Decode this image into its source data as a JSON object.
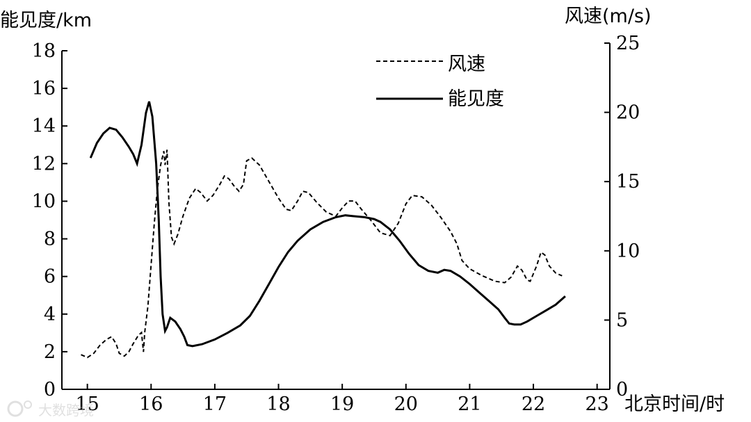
{
  "chart_data": {
    "type": "line",
    "xlabel": "北京时间/时",
    "ylabel_left": "能见度/km",
    "ylabel_right": "风速(m/s)",
    "xlim": [
      14.6,
      23.2
    ],
    "ylim_left": [
      0,
      18
    ],
    "ylim_right": [
      0,
      25
    ],
    "x_ticks": [
      15,
      16,
      17,
      18,
      19,
      20,
      21,
      22,
      23
    ],
    "y_ticks_left": [
      0,
      2,
      4,
      6,
      8,
      10,
      12,
      14,
      16,
      18
    ],
    "y_ticks_right": [
      0,
      5,
      10,
      15,
      20,
      25
    ],
    "grid": false,
    "legend_position": "top-center",
    "series": [
      {
        "name": "风速",
        "axis": "right",
        "style": "dashed",
        "points": [
          [
            14.9,
            2.5
          ],
          [
            15.0,
            2.3
          ],
          [
            15.1,
            2.6
          ],
          [
            15.2,
            3.2
          ],
          [
            15.3,
            3.6
          ],
          [
            15.38,
            3.8
          ],
          [
            15.45,
            3.3
          ],
          [
            15.5,
            2.6
          ],
          [
            15.58,
            2.4
          ],
          [
            15.65,
            2.7
          ],
          [
            15.72,
            3.3
          ],
          [
            15.8,
            3.9
          ],
          [
            15.85,
            4.1
          ],
          [
            15.88,
            2.7
          ],
          [
            15.9,
            4.1
          ],
          [
            15.95,
            6.0
          ],
          [
            16.0,
            9.0
          ],
          [
            16.05,
            12.0
          ],
          [
            16.1,
            14.5
          ],
          [
            16.15,
            16.2
          ],
          [
            16.2,
            17.2
          ],
          [
            16.22,
            16.2
          ],
          [
            16.25,
            17.3
          ],
          [
            16.28,
            13.5
          ],
          [
            16.32,
            11.0
          ],
          [
            16.36,
            10.5
          ],
          [
            16.42,
            11.2
          ],
          [
            16.5,
            12.5
          ],
          [
            16.6,
            13.8
          ],
          [
            16.7,
            14.5
          ],
          [
            16.78,
            14.2
          ],
          [
            16.88,
            13.6
          ],
          [
            16.97,
            14.0
          ],
          [
            17.08,
            14.8
          ],
          [
            17.15,
            15.4
          ],
          [
            17.22,
            15.2
          ],
          [
            17.3,
            14.7
          ],
          [
            17.38,
            14.3
          ],
          [
            17.45,
            14.8
          ],
          [
            17.5,
            16.5
          ],
          [
            17.58,
            16.7
          ],
          [
            17.7,
            16.2
          ],
          [
            17.85,
            15.0
          ],
          [
            18.0,
            13.8
          ],
          [
            18.12,
            13.0
          ],
          [
            18.2,
            12.9
          ],
          [
            18.3,
            13.6
          ],
          [
            18.38,
            14.3
          ],
          [
            18.47,
            14.2
          ],
          [
            18.6,
            13.5
          ],
          [
            18.75,
            12.8
          ],
          [
            18.9,
            12.5
          ],
          [
            19.0,
            13.1
          ],
          [
            19.1,
            13.6
          ],
          [
            19.2,
            13.6
          ],
          [
            19.3,
            13.0
          ],
          [
            19.45,
            12.2
          ],
          [
            19.6,
            11.3
          ],
          [
            19.75,
            11.1
          ],
          [
            19.88,
            12.0
          ],
          [
            20.0,
            13.4
          ],
          [
            20.1,
            14.0
          ],
          [
            20.25,
            13.9
          ],
          [
            20.4,
            13.3
          ],
          [
            20.55,
            12.4
          ],
          [
            20.7,
            11.4
          ],
          [
            20.8,
            10.5
          ],
          [
            20.88,
            9.3
          ],
          [
            21.0,
            8.7
          ],
          [
            21.2,
            8.2
          ],
          [
            21.4,
            7.8
          ],
          [
            21.55,
            7.7
          ],
          [
            21.65,
            8.1
          ],
          [
            21.75,
            8.9
          ],
          [
            21.82,
            8.6
          ],
          [
            21.9,
            7.9
          ],
          [
            21.95,
            7.8
          ],
          [
            22.05,
            8.9
          ],
          [
            22.12,
            9.9
          ],
          [
            22.18,
            9.7
          ],
          [
            22.25,
            8.9
          ],
          [
            22.35,
            8.4
          ],
          [
            22.45,
            8.2
          ]
        ]
      },
      {
        "name": "能见度",
        "axis": "left",
        "style": "solid",
        "points": [
          [
            15.05,
            12.3
          ],
          [
            15.15,
            13.1
          ],
          [
            15.25,
            13.6
          ],
          [
            15.35,
            13.9
          ],
          [
            15.45,
            13.8
          ],
          [
            15.55,
            13.4
          ],
          [
            15.65,
            12.9
          ],
          [
            15.72,
            12.5
          ],
          [
            15.78,
            12.0
          ],
          [
            15.85,
            13.0
          ],
          [
            15.92,
            14.7
          ],
          [
            15.97,
            15.3
          ],
          [
            16.02,
            14.5
          ],
          [
            16.08,
            12.0
          ],
          [
            16.12,
            9.0
          ],
          [
            16.15,
            6.0
          ],
          [
            16.18,
            4.0
          ],
          [
            16.22,
            3.1
          ],
          [
            16.25,
            3.3
          ],
          [
            16.3,
            3.8
          ],
          [
            16.38,
            3.6
          ],
          [
            16.46,
            3.2
          ],
          [
            16.52,
            2.8
          ],
          [
            16.57,
            2.35
          ],
          [
            16.65,
            2.3
          ],
          [
            16.8,
            2.4
          ],
          [
            17.0,
            2.65
          ],
          [
            17.2,
            3.0
          ],
          [
            17.4,
            3.4
          ],
          [
            17.55,
            3.9
          ],
          [
            17.7,
            4.7
          ],
          [
            17.85,
            5.6
          ],
          [
            18.0,
            6.5
          ],
          [
            18.15,
            7.3
          ],
          [
            18.3,
            7.9
          ],
          [
            18.5,
            8.5
          ],
          [
            18.7,
            8.9
          ],
          [
            18.9,
            9.15
          ],
          [
            19.05,
            9.25
          ],
          [
            19.2,
            9.2
          ],
          [
            19.35,
            9.15
          ],
          [
            19.5,
            9.05
          ],
          [
            19.6,
            8.9
          ],
          [
            19.75,
            8.5
          ],
          [
            19.9,
            7.9
          ],
          [
            20.05,
            7.2
          ],
          [
            20.2,
            6.6
          ],
          [
            20.35,
            6.3
          ],
          [
            20.5,
            6.2
          ],
          [
            20.6,
            6.35
          ],
          [
            20.7,
            6.3
          ],
          [
            20.85,
            6.0
          ],
          [
            21.0,
            5.6
          ],
          [
            21.15,
            5.15
          ],
          [
            21.3,
            4.7
          ],
          [
            21.45,
            4.25
          ],
          [
            21.55,
            3.8
          ],
          [
            21.62,
            3.5
          ],
          [
            21.7,
            3.45
          ],
          [
            21.8,
            3.45
          ],
          [
            21.9,
            3.6
          ],
          [
            22.05,
            3.9
          ],
          [
            22.2,
            4.2
          ],
          [
            22.35,
            4.5
          ],
          [
            22.5,
            4.95
          ]
        ]
      }
    ]
  },
  "watermark": "大数跨境"
}
